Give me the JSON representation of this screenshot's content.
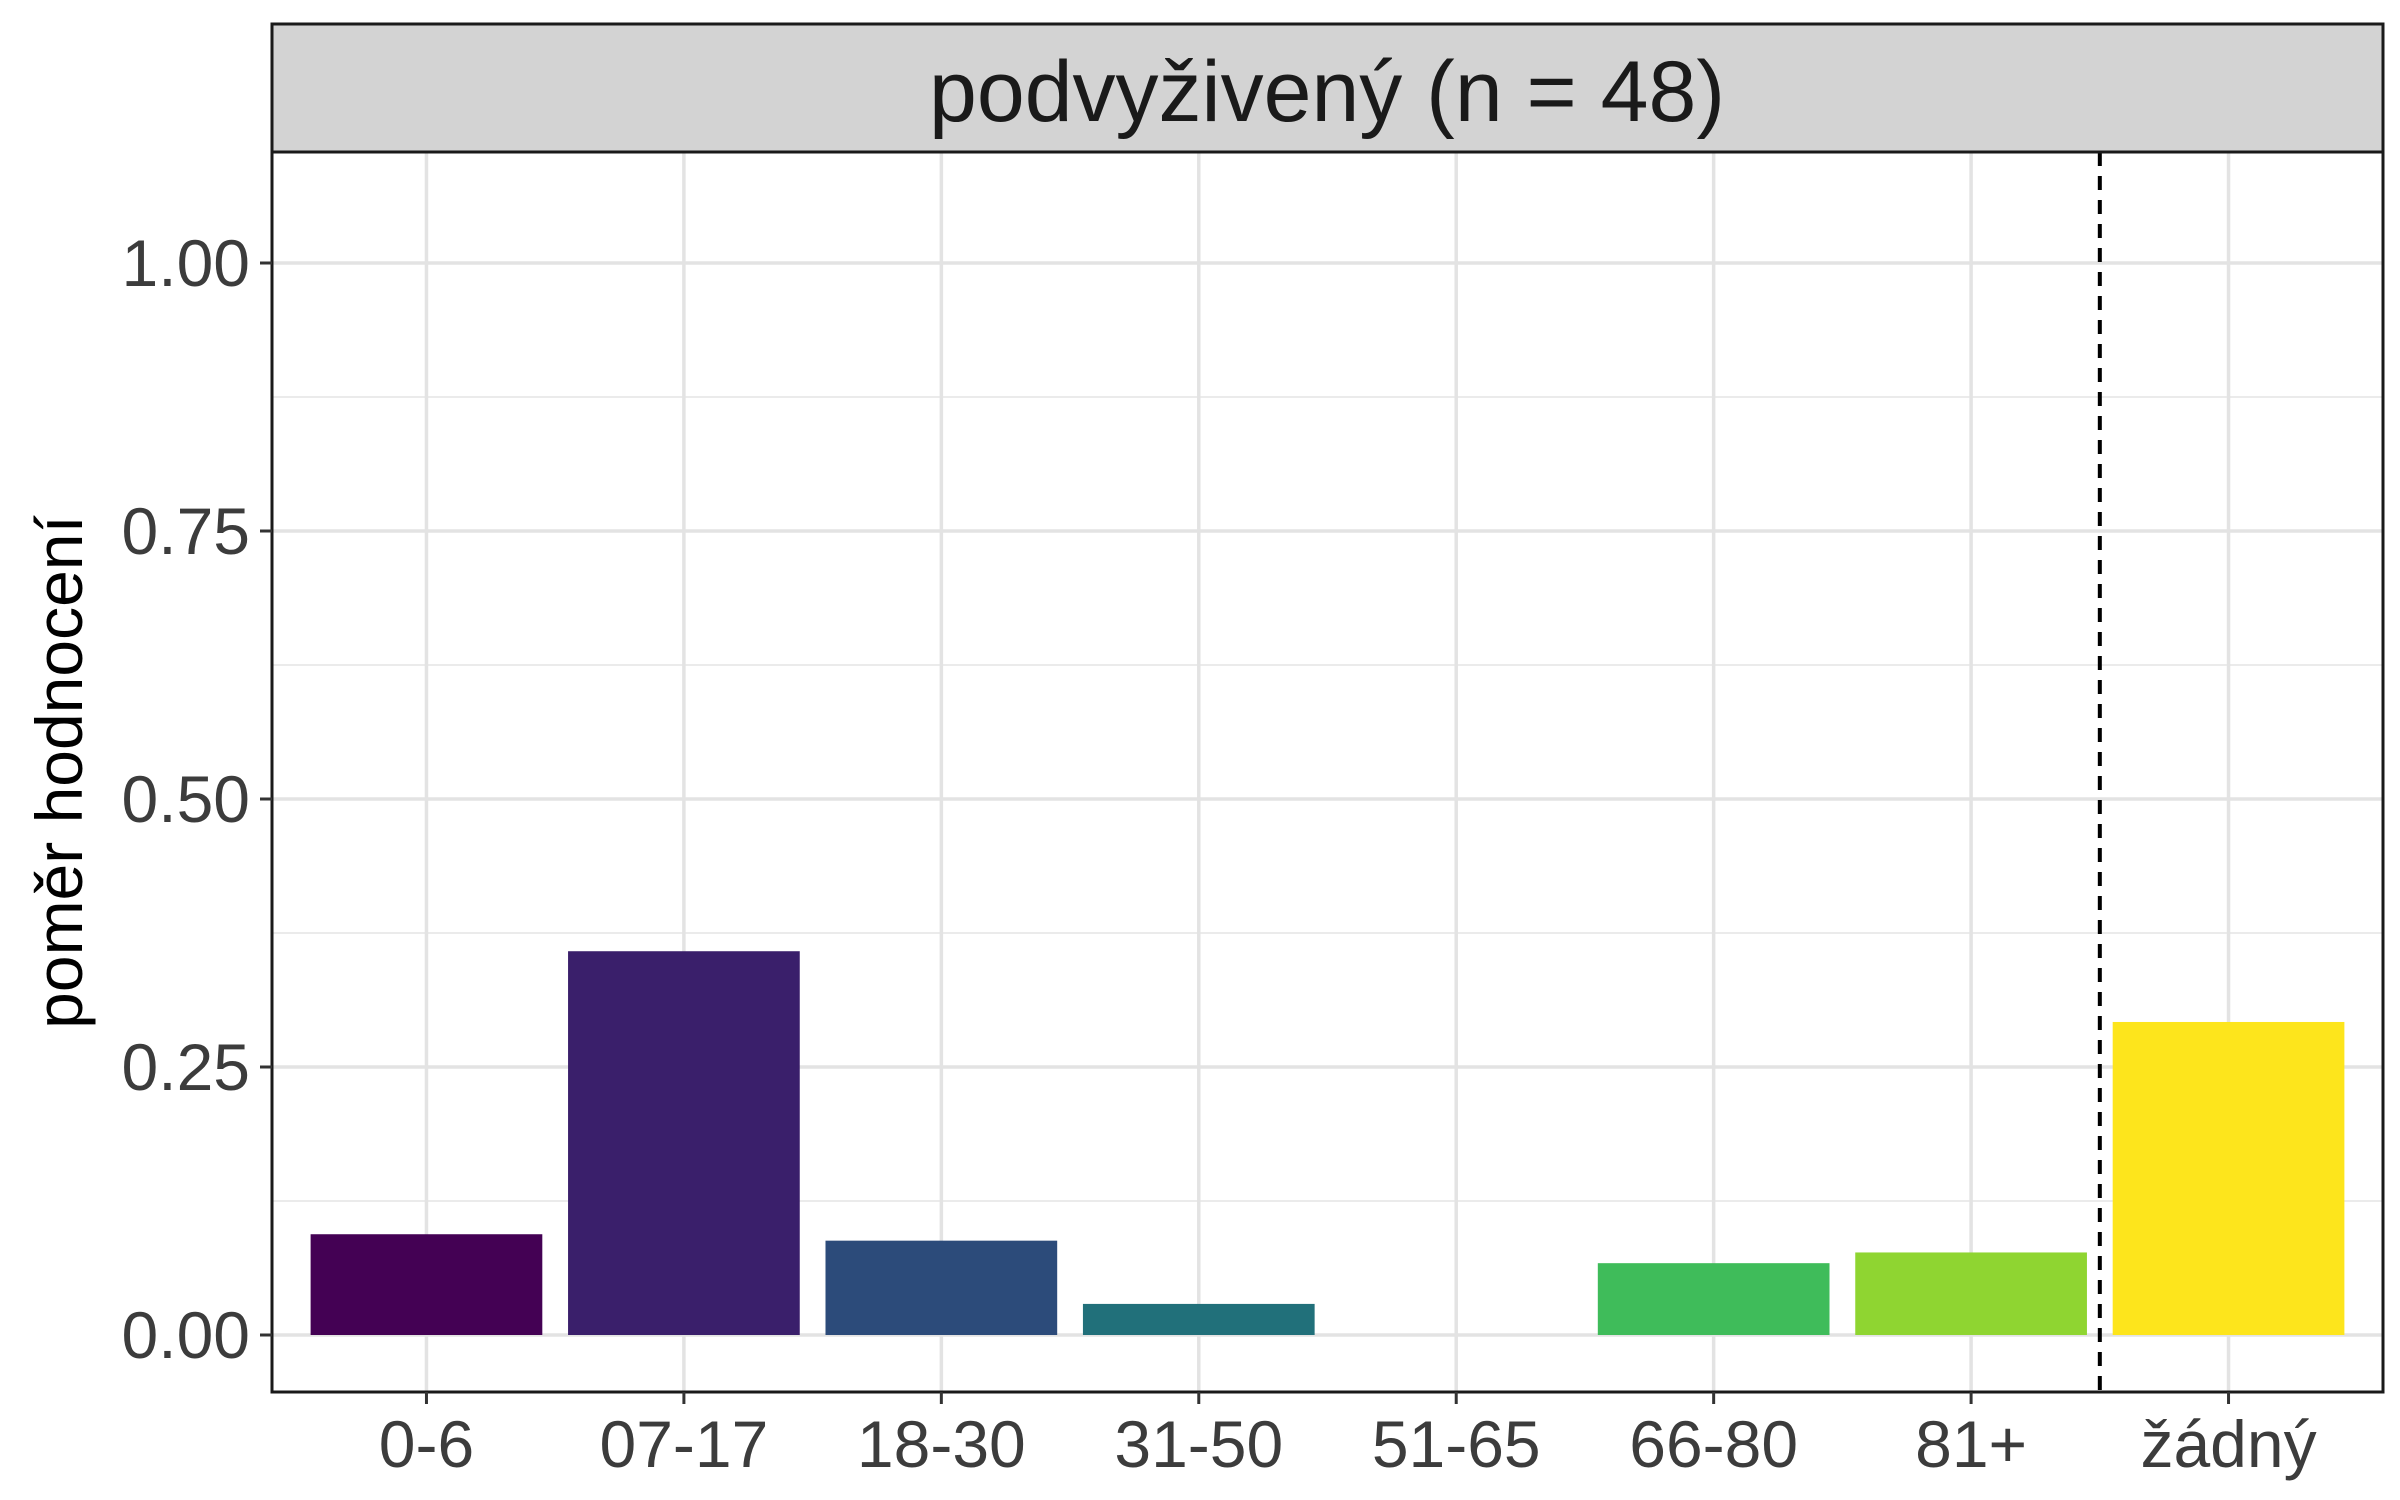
{
  "chart_data": {
    "type": "bar",
    "facet_title": "podvyživený (n = 48)",
    "xlabel": "",
    "ylabel": "poměr hodnocení",
    "categories": [
      "0-6",
      "07-17",
      "18-30",
      "31-50",
      "51-65",
      "66-80",
      "81+",
      "žádný"
    ],
    "values": [
      0.094,
      0.358,
      0.088,
      0.029,
      0.0,
      0.067,
      0.077,
      0.292
    ],
    "colors": [
      "#440154",
      "#3a1f6b",
      "#2c4b7a",
      "#21707a",
      "#23908b",
      "#3fbc5a",
      "#8fd531",
      "#fde51c"
    ],
    "ylim": [
      -0.05,
      1.1
    ],
    "yticks": [
      0.0,
      0.25,
      0.5,
      0.75,
      1.0
    ],
    "ytick_labels": [
      "0.00",
      "0.25",
      "0.50",
      "0.75",
      "1.00"
    ],
    "reference_line": {
      "between": [
        "81+",
        "žádný"
      ],
      "style": "dashed"
    },
    "grid": true,
    "legend": "none"
  }
}
